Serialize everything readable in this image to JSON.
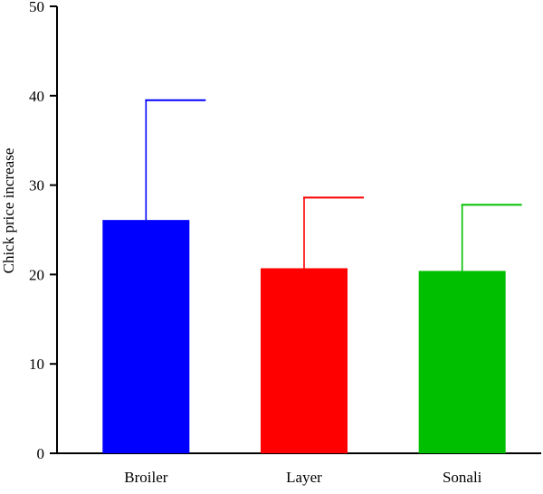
{
  "chart_data": {
    "type": "bar",
    "title": "",
    "xlabel": "",
    "ylabel": "Chick price increase",
    "ylim": [
      0,
      50
    ],
    "yticks": [
      0,
      10,
      20,
      30,
      40,
      50
    ],
    "grid": false,
    "legend": "none",
    "categories": [
      "Broiler",
      "Layer",
      "Sonali"
    ],
    "values": [
      26.1,
      20.7,
      20.4
    ],
    "error_upper": [
      39.5,
      28.6,
      27.8
    ],
    "colors": [
      "#0000ff",
      "#ff0000",
      "#00bf00"
    ]
  }
}
